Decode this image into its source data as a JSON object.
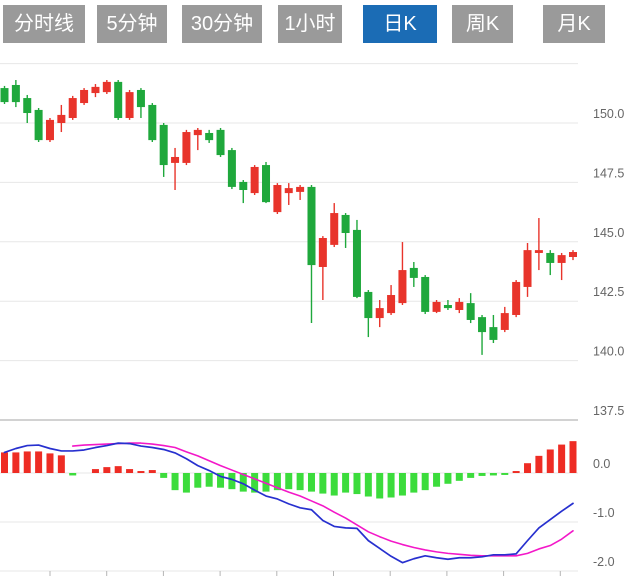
{
  "toolbar": {
    "tabs": [
      {
        "name": "tab-timeline",
        "label": "分时线",
        "active": false
      },
      {
        "name": "tab-5min",
        "label": "5分钟",
        "active": false
      },
      {
        "name": "tab-30min",
        "label": "30分钟",
        "active": false
      },
      {
        "name": "tab-1hour",
        "label": "1小时",
        "active": false
      },
      {
        "name": "tab-daily-k",
        "label": "日K",
        "active": true
      },
      {
        "name": "tab-weekly-k",
        "label": "周K",
        "active": false
      },
      {
        "name": "tab-monthly-k",
        "label": "月K",
        "active": false
      }
    ]
  },
  "chart_data": {
    "type": "candlestick",
    "subtype": "daily-k-with-macd",
    "price_pane": {
      "ylim": [
        137.2,
        152.6
      ],
      "y_ticks": [
        {
          "v": 152.5,
          "label": ""
        },
        {
          "v": 150.0,
          "label": "150.0"
        },
        {
          "v": 147.5,
          "label": "147.5"
        },
        {
          "v": 145.0,
          "label": "145.0"
        },
        {
          "v": 142.5,
          "label": "142.5"
        },
        {
          "v": 140.0,
          "label": "140.0"
        },
        {
          "v": 137.5,
          "label": "137.5"
        }
      ],
      "candles_ohlc": [
        [
          151.47,
          151.56,
          150.8,
          150.88
        ],
        [
          151.6,
          151.81,
          150.67,
          150.88
        ],
        [
          151.05,
          151.18,
          150.0,
          150.42
        ],
        [
          150.55,
          150.63,
          149.2,
          149.28
        ],
        [
          149.28,
          150.21,
          149.2,
          150.13
        ],
        [
          150.0,
          150.76,
          149.62,
          150.34
        ],
        [
          150.21,
          151.14,
          150.13,
          151.05
        ],
        [
          150.84,
          151.47,
          150.76,
          151.39
        ],
        [
          151.26,
          151.64,
          151.09,
          151.52
        ],
        [
          151.3,
          151.81,
          151.22,
          151.73
        ],
        [
          151.73,
          151.81,
          150.13,
          150.21
        ],
        [
          150.21,
          151.39,
          150.13,
          151.3
        ],
        [
          151.39,
          151.47,
          150.21,
          150.67
        ],
        [
          150.76,
          150.84,
          149.2,
          149.28
        ],
        [
          149.92,
          150.0,
          147.73,
          148.23
        ],
        [
          148.32,
          148.95,
          147.18,
          148.57
        ],
        [
          148.32,
          149.71,
          148.23,
          149.62
        ],
        [
          149.49,
          149.79,
          148.86,
          149.71
        ],
        [
          149.58,
          149.71,
          149.16,
          149.28
        ],
        [
          149.71,
          149.79,
          148.57,
          148.65
        ],
        [
          148.86,
          148.95,
          147.22,
          147.31
        ],
        [
          147.52,
          147.6,
          146.63,
          147.18
        ],
        [
          147.05,
          148.23,
          146.97,
          148.15
        ],
        [
          148.23,
          148.36,
          146.63,
          146.67
        ],
        [
          146.25,
          147.47,
          146.17,
          147.39
        ],
        [
          147.05,
          147.47,
          146.55,
          147.26
        ],
        [
          147.1,
          147.39,
          146.76,
          147.31
        ],
        [
          147.31,
          147.39,
          141.58,
          144.02
        ],
        [
          143.94,
          145.24,
          142.55,
          145.16
        ],
        [
          144.87,
          146.63,
          144.78,
          146.21
        ],
        [
          146.13,
          146.21,
          144.74,
          145.37
        ],
        [
          145.5,
          145.92,
          142.63,
          142.68
        ],
        [
          142.89,
          142.97,
          140.99,
          141.79
        ],
        [
          141.79,
          142.55,
          141.41,
          142.21
        ],
        [
          142.0,
          143.18,
          141.92,
          142.76
        ],
        [
          142.42,
          144.99,
          142.34,
          143.81
        ],
        [
          143.9,
          144.15,
          143.1,
          143.48
        ],
        [
          143.52,
          143.6,
          141.96,
          142.05
        ],
        [
          142.05,
          142.55,
          142.0,
          142.47
        ],
        [
          142.34,
          142.55,
          142.13,
          142.21
        ],
        [
          142.13,
          142.63,
          142.0,
          142.47
        ],
        [
          142.42,
          142.84,
          141.58,
          141.71
        ],
        [
          141.83,
          141.92,
          140.24,
          141.2
        ],
        [
          141.41,
          141.92,
          140.74,
          140.87
        ],
        [
          141.29,
          142.26,
          141.2,
          142.0
        ],
        [
          141.92,
          143.39,
          141.83,
          143.31
        ],
        [
          143.1,
          144.95,
          142.68,
          144.65
        ],
        [
          144.53,
          146.0,
          143.81,
          144.65
        ],
        [
          144.53,
          144.65,
          143.6,
          144.11
        ],
        [
          144.11,
          144.53,
          143.39,
          144.44
        ],
        [
          144.36,
          144.65,
          144.23,
          144.57
        ]
      ]
    },
    "macd_pane": {
      "ylim": [
        -2.1,
        0.8
      ],
      "y_ticks": [
        {
          "v": 0,
          "label": "0.0"
        },
        {
          "v": -1,
          "label": "-1.0"
        },
        {
          "v": -2,
          "label": "-2.0"
        }
      ],
      "histogram": [
        0.42,
        0.42,
        0.44,
        0.44,
        0.4,
        0.36,
        -0.05,
        0,
        0.08,
        0.12,
        0.14,
        0.08,
        0.04,
        0.06,
        -0.1,
        -0.35,
        -0.4,
        -0.3,
        -0.28,
        -0.3,
        -0.33,
        -0.38,
        -0.4,
        -0.38,
        -0.35,
        -0.33,
        -0.35,
        -0.38,
        -0.42,
        -0.46,
        -0.4,
        -0.43,
        -0.48,
        -0.52,
        -0.5,
        -0.46,
        -0.4,
        -0.35,
        -0.28,
        -0.22,
        -0.16,
        -0.1,
        -0.06,
        -0.05,
        -0.04,
        0.04,
        0.2,
        0.35,
        0.48,
        0.58,
        0.65
      ],
      "dif": [
        0.42,
        0.5,
        0.56,
        0.57,
        0.5,
        0.45,
        0.45,
        0.47,
        0.52,
        0.56,
        0.61,
        0.6,
        0.55,
        0.52,
        0.48,
        0.41,
        0.29,
        0.15,
        0.05,
        -0.07,
        -0.13,
        -0.22,
        -0.35,
        -0.47,
        -0.53,
        -0.63,
        -0.71,
        -0.75,
        -0.97,
        -1.09,
        -1.12,
        -1.13,
        -1.38,
        -1.54,
        -1.7,
        -1.83,
        -1.75,
        -1.69,
        -1.73,
        -1.76,
        -1.73,
        -1.73,
        -1.71,
        -1.67,
        -1.67,
        -1.65,
        -1.38,
        -1.12,
        -0.95,
        -0.78,
        -0.62
      ],
      "dea": [
        null,
        null,
        null,
        null,
        null,
        null,
        0.55,
        0.57,
        0.58,
        0.59,
        0.6,
        0.61,
        0.61,
        0.59,
        0.56,
        0.52,
        0.43,
        0.35,
        0.25,
        0.15,
        0.06,
        -0.03,
        -0.12,
        -0.21,
        -0.3,
        -0.39,
        -0.47,
        -0.57,
        -0.67,
        -0.8,
        -0.92,
        -1.06,
        -1.2,
        -1.3,
        -1.39,
        -1.46,
        -1.52,
        -1.57,
        -1.61,
        -1.64,
        -1.66,
        -1.68,
        -1.69,
        -1.69,
        -1.69,
        -1.69,
        -1.64,
        -1.55,
        -1.48,
        -1.35,
        -1.18
      ]
    },
    "colors": {
      "up": "#e8342b",
      "down": "#1fa83c",
      "hist_up": "#ee2c24",
      "hist_down": "#3cdc3c",
      "dif_line": "#2730cf",
      "dea_line": "#f318c8",
      "grid": "#e7e7e7",
      "grid_strong": "#d2d2d2",
      "axis_tick": "#b5b5b5",
      "axis_text": "#666666",
      "tab_active_bg": "#1b6cb5",
      "tab_inactive_bg": "#9a9a9a"
    },
    "legend_position": "none",
    "grid": true
  }
}
